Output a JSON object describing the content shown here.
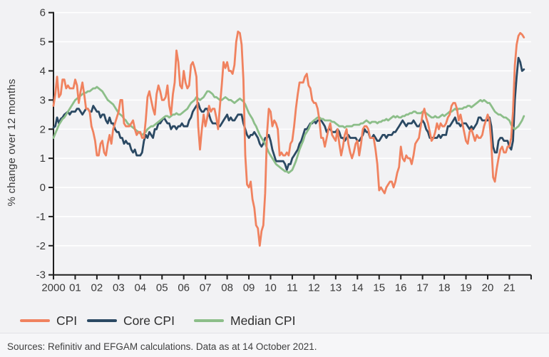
{
  "chart": {
    "y_axis_label": "% change over 12 months",
    "footer": "Sources: Refinitiv and EFGAM calculations. Data as at 14 October 2021.",
    "legend": [
      {
        "label": "CPI",
        "color": "#f0825f"
      },
      {
        "label": "Core CPI",
        "color": "#2b4963"
      },
      {
        "label": "Median CPI",
        "color": "#8cbe89"
      }
    ],
    "colors": {
      "background": "#f2f2f4",
      "gridline": "#ffffff",
      "axis": "#1f1f1f",
      "tick_text": "#3a3a3a",
      "cpi": "#f0825f",
      "core_cpi": "#2b4963",
      "median_cpi": "#8cbe89"
    }
  },
  "chart_data": {
    "type": "line",
    "title": "",
    "xlabel": "",
    "ylabel": "% change over 12 months",
    "ylim": [
      -3,
      6
    ],
    "y_ticks": [
      6,
      5,
      4,
      3,
      2,
      1,
      0,
      -1,
      -2,
      -3
    ],
    "x_tick_labels": [
      "2000",
      "01",
      "02",
      "03",
      "04",
      "05",
      "06",
      "07",
      "08",
      "09",
      "10",
      "11",
      "12",
      "13",
      "14",
      "15",
      "16",
      "17",
      "18",
      "19",
      "20",
      "21"
    ],
    "x_start_year": 2000,
    "frequency": "monthly",
    "grid": "horizontal-white",
    "legend_position": "bottom",
    "series": [
      {
        "name": "CPI",
        "color": "#f0825f",
        "values": [
          2.8,
          3.2,
          3.8,
          3.1,
          3.2,
          3.7,
          3.7,
          3.4,
          3.5,
          3.4,
          3.4,
          3.4,
          3.7,
          3.5,
          2.9,
          3.3,
          3.6,
          3.2,
          2.7,
          2.7,
          2.6,
          2.1,
          1.9,
          1.6,
          1.1,
          1.1,
          1.5,
          1.6,
          1.2,
          1.1,
          1.5,
          1.8,
          1.5,
          2.0,
          2.2,
          2.4,
          2.6,
          3.0,
          3.0,
          2.2,
          2.1,
          2.1,
          2.1,
          2.2,
          2.3,
          2.0,
          1.8,
          1.9,
          1.9,
          1.7,
          1.7,
          2.3,
          3.1,
          3.3,
          3.0,
          2.7,
          2.5,
          3.2,
          3.5,
          3.3,
          3.0,
          3.0,
          3.1,
          3.5,
          2.8,
          2.5,
          3.2,
          3.6,
          4.7,
          4.3,
          3.5,
          3.4,
          4.0,
          3.6,
          3.4,
          3.5,
          4.2,
          4.3,
          4.1,
          3.8,
          2.1,
          1.3,
          2.0,
          2.5,
          2.1,
          2.4,
          2.8,
          2.6,
          2.7,
          2.7,
          2.4,
          2.0,
          2.8,
          3.5,
          4.3,
          4.1,
          4.3,
          4.0,
          4.0,
          3.9,
          4.2,
          5.0,
          5.35,
          5.3,
          4.9,
          3.7,
          1.1,
          0.1,
          0.0,
          0.2,
          -0.4,
          -0.7,
          -1.3,
          -1.4,
          -2.0,
          -1.5,
          -1.3,
          -0.2,
          1.8,
          2.7,
          2.6,
          2.1,
          2.3,
          2.2,
          2.0,
          1.1,
          1.2,
          1.1,
          1.1,
          1.2,
          1.1,
          1.5,
          1.6,
          2.1,
          2.7,
          3.2,
          3.6,
          3.6,
          3.6,
          3.8,
          3.9,
          3.5,
          3.4,
          3.0,
          2.9,
          2.9,
          2.7,
          2.3,
          1.7,
          1.7,
          1.4,
          1.7,
          2.0,
          2.2,
          1.8,
          1.7,
          1.6,
          2.0,
          1.5,
          1.1,
          1.4,
          1.8,
          2.0,
          1.5,
          1.2,
          1.0,
          1.2,
          1.5,
          1.6,
          1.1,
          1.5,
          2.0,
          2.1,
          2.1,
          2.0,
          1.7,
          1.7,
          1.7,
          1.3,
          0.8,
          -0.1,
          0.0,
          -0.1,
          -0.2,
          0.0,
          0.1,
          0.2,
          0.2,
          0.0,
          0.2,
          0.5,
          0.7,
          1.4,
          1.0,
          0.9,
          1.1,
          1.0,
          1.0,
          0.8,
          1.1,
          1.5,
          1.6,
          1.7,
          2.1,
          2.5,
          2.7,
          2.4,
          2.2,
          1.9,
          1.6,
          1.7,
          1.9,
          2.2,
          2.0,
          2.2,
          2.1,
          2.1,
          2.2,
          2.4,
          2.5,
          2.8,
          2.9,
          2.9,
          2.7,
          2.3,
          2.5,
          2.2,
          1.9,
          1.6,
          1.5,
          1.9,
          2.0,
          1.8,
          1.6,
          1.8,
          1.7,
          1.7,
          1.8,
          2.1,
          2.3,
          2.5,
          2.3,
          1.5,
          0.35,
          0.2,
          0.65,
          1.0,
          1.3,
          1.4,
          1.2,
          1.2,
          1.4,
          1.4,
          1.7,
          2.6,
          4.2,
          4.9,
          5.2,
          5.3,
          5.25,
          5.15
        ]
      },
      {
        "name": "Core CPI",
        "color": "#2b4963",
        "values": [
          2.05,
          2.1,
          2.4,
          2.2,
          2.35,
          2.4,
          2.5,
          2.55,
          2.6,
          2.5,
          2.6,
          2.6,
          2.6,
          2.7,
          2.7,
          2.6,
          2.5,
          2.6,
          2.7,
          2.7,
          2.6,
          2.6,
          2.8,
          2.7,
          2.6,
          2.6,
          2.4,
          2.5,
          2.5,
          2.3,
          2.2,
          2.4,
          2.2,
          2.2,
          2.0,
          1.9,
          1.9,
          1.7,
          1.7,
          1.5,
          1.6,
          1.5,
          1.5,
          1.3,
          1.2,
          1.3,
          1.1,
          1.1,
          1.1,
          1.2,
          1.6,
          1.8,
          1.7,
          1.9,
          1.8,
          1.7,
          2.0,
          2.0,
          2.2,
          2.2,
          2.3,
          2.4,
          2.3,
          2.2,
          2.2,
          2.0,
          2.1,
          2.1,
          2.0,
          2.1,
          2.1,
          2.2,
          2.1,
          2.1,
          2.1,
          2.3,
          2.4,
          2.6,
          2.7,
          2.8,
          2.9,
          2.7,
          2.6,
          2.6,
          2.7,
          2.7,
          2.5,
          2.3,
          2.2,
          2.2,
          2.2,
          2.1,
          2.1,
          2.2,
          2.3,
          2.4,
          2.5,
          2.3,
          2.4,
          2.3,
          2.3,
          2.4,
          2.5,
          2.5,
          2.5,
          2.2,
          2.0,
          1.8,
          1.7,
          1.8,
          1.8,
          1.9,
          1.8,
          1.7,
          1.5,
          1.4,
          1.5,
          1.7,
          1.7,
          1.8,
          1.6,
          1.3,
          1.1,
          0.9,
          0.9,
          0.9,
          0.9,
          0.9,
          0.8,
          0.6,
          0.8,
          0.8,
          1.0,
          1.1,
          1.2,
          1.3,
          1.5,
          1.6,
          1.8,
          2.0,
          2.0,
          2.1,
          2.2,
          2.2,
          2.3,
          2.2,
          2.3,
          2.3,
          2.3,
          2.2,
          2.1,
          1.9,
          2.0,
          2.0,
          1.9,
          1.9,
          1.9,
          2.0,
          1.9,
          1.7,
          1.7,
          1.6,
          1.7,
          1.8,
          1.7,
          1.7,
          1.7,
          1.7,
          1.6,
          1.6,
          1.7,
          1.8,
          2.0,
          1.9,
          1.9,
          1.7,
          1.7,
          1.8,
          1.7,
          1.6,
          1.6,
          1.7,
          1.8,
          1.8,
          1.7,
          1.8,
          1.8,
          1.8,
          1.9,
          1.9,
          2.0,
          2.1,
          2.2,
          2.3,
          2.2,
          2.1,
          2.2,
          2.2,
          2.2,
          2.3,
          2.2,
          2.1,
          2.1,
          2.2,
          2.3,
          2.2,
          2.0,
          1.9,
          1.7,
          1.7,
          1.7,
          1.7,
          1.7,
          1.8,
          1.7,
          1.8,
          1.8,
          1.8,
          2.1,
          2.1,
          2.2,
          2.3,
          2.4,
          2.2,
          2.2,
          2.1,
          2.2,
          2.2,
          2.2,
          2.1,
          2.0,
          2.1,
          2.0,
          2.1,
          2.2,
          2.4,
          2.4,
          2.3,
          2.3,
          2.3,
          2.3,
          2.4,
          2.1,
          1.4,
          1.2,
          1.2,
          1.6,
          1.7,
          1.7,
          1.6,
          1.6,
          1.6,
          1.4,
          1.3,
          1.6,
          3.0,
          3.8,
          4.45,
          4.3,
          4.0,
          4.05
        ]
      },
      {
        "name": "Median CPI",
        "color": "#8cbe89",
        "values": [
          1.7,
          1.85,
          2.0,
          2.15,
          2.25,
          2.35,
          2.4,
          2.5,
          2.6,
          2.7,
          2.8,
          2.9,
          3.0,
          3.05,
          3.1,
          3.15,
          3.2,
          3.25,
          3.25,
          3.3,
          3.3,
          3.35,
          3.4,
          3.4,
          3.45,
          3.4,
          3.35,
          3.3,
          3.2,
          3.1,
          3.0,
          2.95,
          2.9,
          2.85,
          2.75,
          2.65,
          2.55,
          2.5,
          2.45,
          2.35,
          2.3,
          2.2,
          2.15,
          2.1,
          2.05,
          2.0,
          1.95,
          1.9,
          1.85,
          1.8,
          1.85,
          1.9,
          2.0,
          2.05,
          2.1,
          2.1,
          2.15,
          2.2,
          2.25,
          2.3,
          2.35,
          2.4,
          2.45,
          2.45,
          2.4,
          2.45,
          2.5,
          2.5,
          2.55,
          2.5,
          2.5,
          2.55,
          2.6,
          2.65,
          2.7,
          2.8,
          2.9,
          2.95,
          3.0,
          3.1,
          3.05,
          3.0,
          3.05,
          3.1,
          3.2,
          3.3,
          3.3,
          3.25,
          3.2,
          3.1,
          3.1,
          3.05,
          3.0,
          3.0,
          3.05,
          3.1,
          3.05,
          3.0,
          3.0,
          2.95,
          2.9,
          2.95,
          3.0,
          3.05,
          3.0,
          2.95,
          2.85,
          2.7,
          2.55,
          2.45,
          2.35,
          2.2,
          2.1,
          1.95,
          1.8,
          1.7,
          1.6,
          1.5,
          1.35,
          1.2,
          1.1,
          1.0,
          0.9,
          0.8,
          0.75,
          0.7,
          0.65,
          0.6,
          0.55,
          0.55,
          0.5,
          0.55,
          0.6,
          0.75,
          0.9,
          1.1,
          1.3,
          1.45,
          1.6,
          1.8,
          1.9,
          2.0,
          2.15,
          2.25,
          2.3,
          2.35,
          2.4,
          2.4,
          2.35,
          2.35,
          2.3,
          2.3,
          2.3,
          2.3,
          2.25,
          2.25,
          2.2,
          2.15,
          2.1,
          2.1,
          2.1,
          2.05,
          2.1,
          2.1,
          2.1,
          2.1,
          2.15,
          2.15,
          2.15,
          2.15,
          2.2,
          2.2,
          2.25,
          2.3,
          2.25,
          2.2,
          2.25,
          2.25,
          2.25,
          2.2,
          2.25,
          2.25,
          2.3,
          2.3,
          2.35,
          2.3,
          2.35,
          2.4,
          2.45,
          2.4,
          2.45,
          2.4,
          2.4,
          2.45,
          2.45,
          2.5,
          2.5,
          2.55,
          2.55,
          2.6,
          2.6,
          2.55,
          2.55,
          2.55,
          2.6,
          2.6,
          2.55,
          2.5,
          2.45,
          2.4,
          2.4,
          2.45,
          2.4,
          2.4,
          2.45,
          2.5,
          2.45,
          2.5,
          2.55,
          2.6,
          2.6,
          2.65,
          2.7,
          2.65,
          2.7,
          2.7,
          2.7,
          2.75,
          2.75,
          2.8,
          2.8,
          2.75,
          2.8,
          2.85,
          2.9,
          2.95,
          3.0,
          2.95,
          3.0,
          2.95,
          2.9,
          2.9,
          2.8,
          2.7,
          2.6,
          2.55,
          2.5,
          2.5,
          2.45,
          2.4,
          2.4,
          2.35,
          2.3,
          2.15,
          2.05,
          2.0,
          2.05,
          2.1,
          2.2,
          2.3,
          2.45
        ]
      }
    ]
  }
}
